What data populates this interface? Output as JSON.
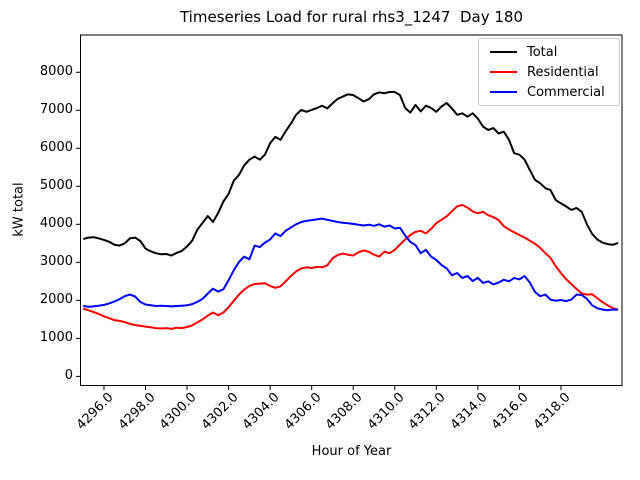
{
  "chart_data": {
    "type": "line",
    "title": "Timeseries Load for rural rhs3_1247  Day 180",
    "xlabel": "Hour of Year",
    "ylabel": "kW total",
    "grid": false,
    "legend_position": "upper right",
    "xlim": [
      4294.87,
      4320.94
    ],
    "ylim": [
      -240,
      8980
    ],
    "xtick_values": [
      4296,
      4298,
      4300,
      4302,
      4304,
      4306,
      4308,
      4310,
      4312,
      4314,
      4316,
      4318
    ],
    "xtick_labels": [
      "4296.0",
      "4298.0",
      "4300.0",
      "4302.0",
      "4304.0",
      "4306.0",
      "4308.0",
      "4310.0",
      "4312.0",
      "4314.0",
      "4316.0",
      "4318.0"
    ],
    "ytick_values": [
      0,
      1000,
      2000,
      3000,
      4000,
      5000,
      6000,
      7000,
      8000
    ],
    "ytick_labels": [
      "0",
      "1000",
      "2000",
      "3000",
      "4000",
      "5000",
      "6000",
      "7000",
      "8000"
    ],
    "x": [
      4295.0,
      4295.25,
      4295.5,
      4295.75,
      4296.0,
      4296.25,
      4296.5,
      4296.75,
      4297.0,
      4297.25,
      4297.5,
      4297.75,
      4298.0,
      4298.25,
      4298.5,
      4298.75,
      4299.0,
      4299.25,
      4299.5,
      4299.75,
      4300.0,
      4300.25,
      4300.5,
      4300.75,
      4301.0,
      4301.25,
      4301.5,
      4301.75,
      4302.0,
      4302.25,
      4302.5,
      4302.75,
      4303.0,
      4303.25,
      4303.5,
      4303.75,
      4304.0,
      4304.25,
      4304.5,
      4304.75,
      4305.0,
      4305.25,
      4305.5,
      4305.75,
      4306.0,
      4306.25,
      4306.5,
      4306.75,
      4307.0,
      4307.25,
      4307.5,
      4307.75,
      4308.0,
      4308.25,
      4308.5,
      4308.75,
      4309.0,
      4309.25,
      4309.5,
      4309.75,
      4310.0,
      4310.25,
      4310.5,
      4310.75,
      4311.0,
      4311.25,
      4311.5,
      4311.75,
      4312.0,
      4312.25,
      4312.5,
      4312.75,
      4313.0,
      4313.25,
      4313.5,
      4313.75,
      4314.0,
      4314.25,
      4314.5,
      4314.75,
      4315.0,
      4315.25,
      4315.5,
      4315.75,
      4316.0,
      4316.25,
      4316.5,
      4316.75,
      4317.0,
      4317.25,
      4317.5,
      4317.75,
      4318.0,
      4318.25,
      4318.5,
      4318.75,
      4319.0,
      4319.25,
      4319.5,
      4319.75,
      4320.0,
      4320.25,
      4320.5,
      4320.75
    ],
    "series": [
      {
        "name": "Total",
        "color": "#000000",
        "values": [
          3610,
          3650,
          3660,
          3630,
          3590,
          3540,
          3460,
          3440,
          3500,
          3630,
          3650,
          3560,
          3360,
          3290,
          3240,
          3210,
          3220,
          3180,
          3250,
          3300,
          3420,
          3570,
          3860,
          4040,
          4220,
          4060,
          4300,
          4600,
          4800,
          5150,
          5300,
          5550,
          5700,
          5780,
          5700,
          5830,
          6130,
          6300,
          6220,
          6450,
          6650,
          6880,
          7010,
          6960,
          7010,
          7060,
          7120,
          7050,
          7180,
          7300,
          7360,
          7420,
          7400,
          7320,
          7230,
          7290,
          7420,
          7470,
          7450,
          7480,
          7480,
          7400,
          7060,
          6940,
          7140,
          6970,
          7120,
          7060,
          6960,
          7100,
          7190,
          7050,
          6880,
          6920,
          6830,
          6920,
          6780,
          6570,
          6480,
          6530,
          6390,
          6440,
          6220,
          5870,
          5830,
          5700,
          5430,
          5170,
          5080,
          4950,
          4900,
          4640,
          4550,
          4470,
          4380,
          4430,
          4330,
          4000,
          3750,
          3600,
          3520,
          3480,
          3460,
          3510
        ]
      },
      {
        "name": "Residential",
        "color": "#ff0000",
        "values": [
          1780,
          1740,
          1690,
          1640,
          1580,
          1530,
          1480,
          1460,
          1430,
          1380,
          1350,
          1330,
          1310,
          1290,
          1270,
          1260,
          1270,
          1250,
          1280,
          1270,
          1300,
          1340,
          1420,
          1500,
          1600,
          1680,
          1610,
          1680,
          1820,
          1990,
          2150,
          2280,
          2380,
          2430,
          2440,
          2450,
          2380,
          2330,
          2370,
          2500,
          2640,
          2760,
          2840,
          2870,
          2850,
          2880,
          2870,
          2920,
          3100,
          3190,
          3230,
          3200,
          3180,
          3260,
          3310,
          3280,
          3200,
          3150,
          3280,
          3240,
          3330,
          3470,
          3600,
          3720,
          3800,
          3830,
          3760,
          3880,
          4030,
          4120,
          4210,
          4340,
          4470,
          4510,
          4440,
          4340,
          4290,
          4330,
          4240,
          4190,
          4110,
          3950,
          3860,
          3790,
          3720,
          3650,
          3570,
          3490,
          3380,
          3240,
          3120,
          2900,
          2720,
          2560,
          2430,
          2300,
          2180,
          2150,
          2160,
          2060,
          1950,
          1870,
          1790,
          1760
        ]
      },
      {
        "name": "Commercial",
        "color": "#0000ff",
        "values": [
          1850,
          1830,
          1840,
          1860,
          1880,
          1920,
          1970,
          2030,
          2110,
          2150,
          2100,
          1960,
          1890,
          1870,
          1850,
          1860,
          1850,
          1840,
          1850,
          1860,
          1870,
          1900,
          1960,
          2040,
          2180,
          2310,
          2230,
          2290,
          2530,
          2790,
          3010,
          3150,
          3080,
          3440,
          3400,
          3520,
          3600,
          3760,
          3690,
          3830,
          3920,
          4000,
          4060,
          4090,
          4110,
          4130,
          4150,
          4120,
          4090,
          4060,
          4040,
          4030,
          4010,
          3990,
          3970,
          3990,
          3960,
          4000,
          3940,
          3970,
          3890,
          3910,
          3700,
          3540,
          3450,
          3240,
          3330,
          3150,
          3060,
          2930,
          2840,
          2660,
          2720,
          2590,
          2640,
          2510,
          2590,
          2460,
          2500,
          2420,
          2470,
          2540,
          2500,
          2590,
          2550,
          2640,
          2470,
          2220,
          2110,
          2150,
          2020,
          1990,
          2010,
          1980,
          2020,
          2150,
          2140,
          2040,
          1870,
          1790,
          1760,
          1740,
          1760,
          1750
        ]
      }
    ]
  }
}
